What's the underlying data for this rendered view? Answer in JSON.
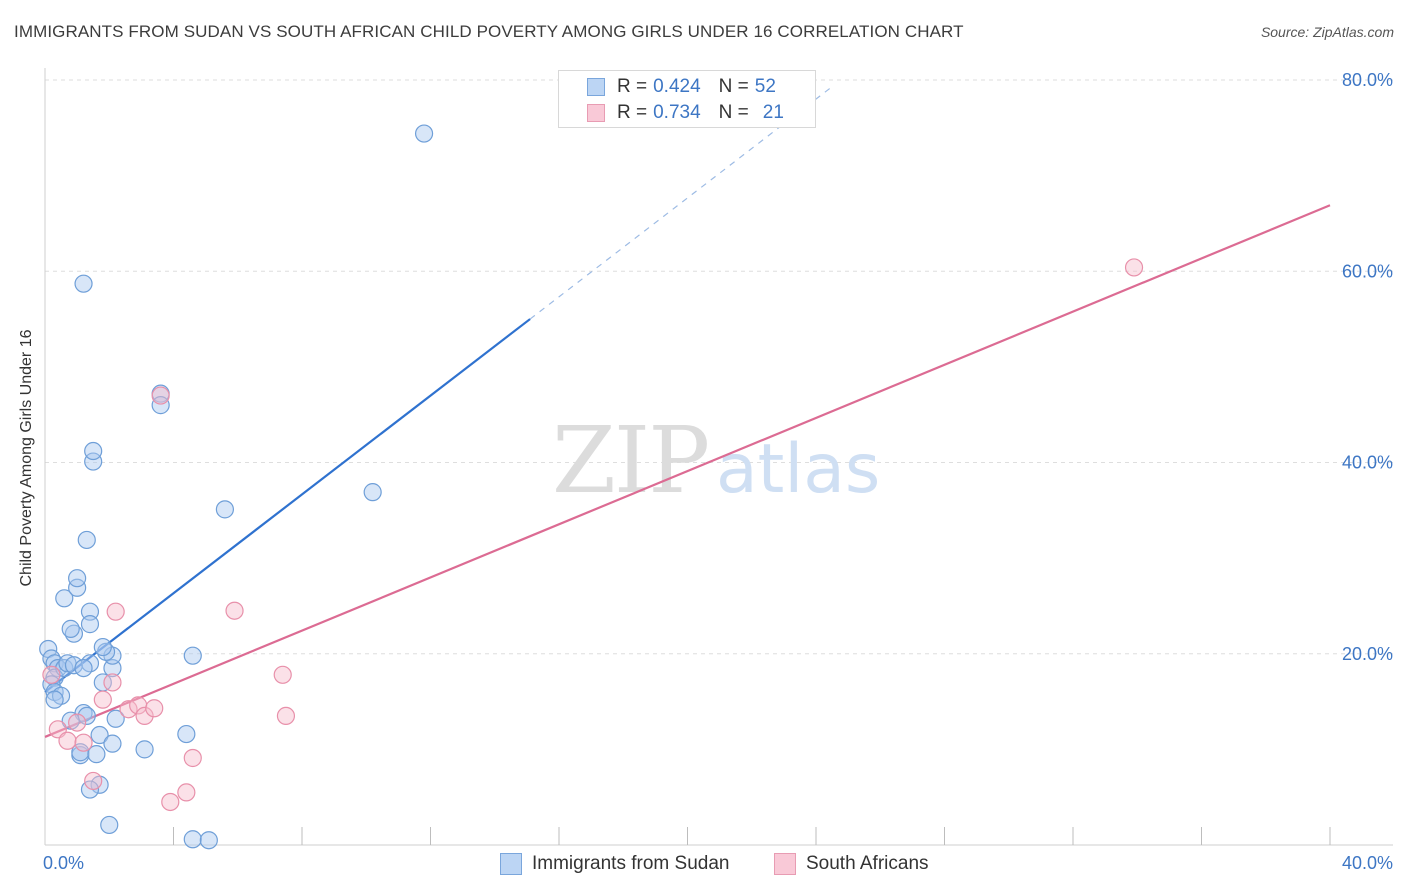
{
  "title": "IMMIGRANTS FROM SUDAN VS SOUTH AFRICAN CHILD POVERTY AMONG GIRLS UNDER 16 CORRELATION CHART",
  "source": "Source: ZipAtlas.com",
  "watermark": {
    "zip": "ZIP",
    "atlas": "atlas"
  },
  "colors": {
    "blue_fill": "#a9c8f0",
    "blue_stroke": "#6f9fd8",
    "blue_line": "#2f72cf",
    "pink_fill": "#f7bccd",
    "pink_stroke": "#e890aa",
    "pink_line": "#dc6b93",
    "tick_text": "#3d76c4",
    "grid": "#dedede"
  },
  "legend_top": {
    "rows": [
      {
        "r_label": "R = ",
        "r_value": "0.424",
        "n_label": "N = ",
        "n_value": "52"
      },
      {
        "r_label": "R = ",
        "r_value": "0.734",
        "n_label": "N = ",
        "n_value": "21"
      }
    ]
  },
  "legend_bottom": {
    "items": [
      {
        "label": "Immigrants from Sudan"
      },
      {
        "label": "South Africans"
      }
    ]
  },
  "chart_data": {
    "type": "scatter",
    "title": "IMMIGRANTS FROM SUDAN VS SOUTH AFRICAN CHILD POVERTY AMONG GIRLS UNDER 16 CORRELATION CHART",
    "xlabel": "",
    "ylabel": "Child Poverty Among Girls Under 16",
    "xlim": [
      0,
      40
    ],
    "ylim": [
      0,
      80
    ],
    "x_tick_labels": [
      "0.0%",
      "40.0%"
    ],
    "y_ticks": [
      20,
      40,
      60,
      80
    ],
    "y_tick_labels": [
      "20.0%",
      "40.0%",
      "60.0%",
      "80.0%"
    ],
    "grid": true,
    "series": [
      {
        "name": "Immigrants from Sudan",
        "color": "blue",
        "R": 0.424,
        "N": 52,
        "trend": {
          "x0": 0,
          "y0": 16.0,
          "x1": 15.1,
          "y1": 55.0,
          "dash_to_x": 24.5,
          "dash_to_y": 79.3
        },
        "points": [
          [
            0.1,
            20.5
          ],
          [
            0.2,
            19.5
          ],
          [
            0.3,
            19.0
          ],
          [
            0.4,
            18.5
          ],
          [
            0.3,
            17.5
          ],
          [
            0.2,
            16.8
          ],
          [
            0.3,
            16.0
          ],
          [
            0.5,
            15.6
          ],
          [
            0.3,
            15.2
          ],
          [
            0.6,
            18.5
          ],
          [
            0.7,
            19.0
          ],
          [
            0.9,
            18.8
          ],
          [
            1.4,
            19.0
          ],
          [
            1.2,
            18.5
          ],
          [
            2.1,
            18.5
          ],
          [
            2.1,
            19.8
          ],
          [
            1.9,
            20.2
          ],
          [
            1.8,
            20.7
          ],
          [
            0.6,
            25.8
          ],
          [
            0.9,
            22.1
          ],
          [
            0.8,
            22.6
          ],
          [
            1.0,
            26.9
          ],
          [
            1.0,
            27.9
          ],
          [
            1.3,
            31.9
          ],
          [
            1.4,
            24.4
          ],
          [
            1.4,
            23.1
          ],
          [
            1.5,
            40.1
          ],
          [
            1.5,
            41.2
          ],
          [
            1.8,
            17.0
          ],
          [
            1.2,
            13.8
          ],
          [
            1.3,
            13.5
          ],
          [
            0.8,
            13.0
          ],
          [
            1.7,
            11.5
          ],
          [
            2.2,
            13.2
          ],
          [
            2.1,
            10.6
          ],
          [
            1.1,
            9.4
          ],
          [
            1.1,
            9.7
          ],
          [
            1.6,
            9.5
          ],
          [
            1.7,
            6.3
          ],
          [
            1.4,
            5.8
          ],
          [
            2.0,
            2.1
          ],
          [
            3.1,
            10.0
          ],
          [
            4.4,
            11.6
          ],
          [
            4.6,
            19.8
          ],
          [
            3.6,
            47.2
          ],
          [
            3.6,
            46.0
          ],
          [
            1.2,
            58.7
          ],
          [
            5.6,
            35.1
          ],
          [
            10.2,
            36.9
          ],
          [
            11.8,
            74.4
          ],
          [
            4.6,
            0.6
          ],
          [
            5.1,
            0.5
          ]
        ]
      },
      {
        "name": "South Africans",
        "color": "pink",
        "R": 0.734,
        "N": 21,
        "trend": {
          "x0": 0,
          "y0": 11.3,
          "x1": 40.0,
          "y1": 66.9
        },
        "points": [
          [
            0.2,
            17.8
          ],
          [
            0.4,
            12.1
          ],
          [
            0.7,
            10.9
          ],
          [
            1.0,
            12.8
          ],
          [
            1.2,
            10.7
          ],
          [
            1.5,
            6.7
          ],
          [
            1.8,
            15.2
          ],
          [
            2.1,
            17.0
          ],
          [
            2.2,
            24.4
          ],
          [
            2.6,
            14.2
          ],
          [
            2.9,
            14.6
          ],
          [
            3.1,
            13.5
          ],
          [
            3.4,
            14.3
          ],
          [
            3.6,
            47.0
          ],
          [
            3.9,
            4.5
          ],
          [
            4.4,
            5.5
          ],
          [
            4.6,
            9.1
          ],
          [
            5.9,
            24.5
          ],
          [
            7.4,
            17.8
          ],
          [
            7.5,
            13.5
          ],
          [
            33.9,
            60.4
          ]
        ]
      }
    ]
  }
}
